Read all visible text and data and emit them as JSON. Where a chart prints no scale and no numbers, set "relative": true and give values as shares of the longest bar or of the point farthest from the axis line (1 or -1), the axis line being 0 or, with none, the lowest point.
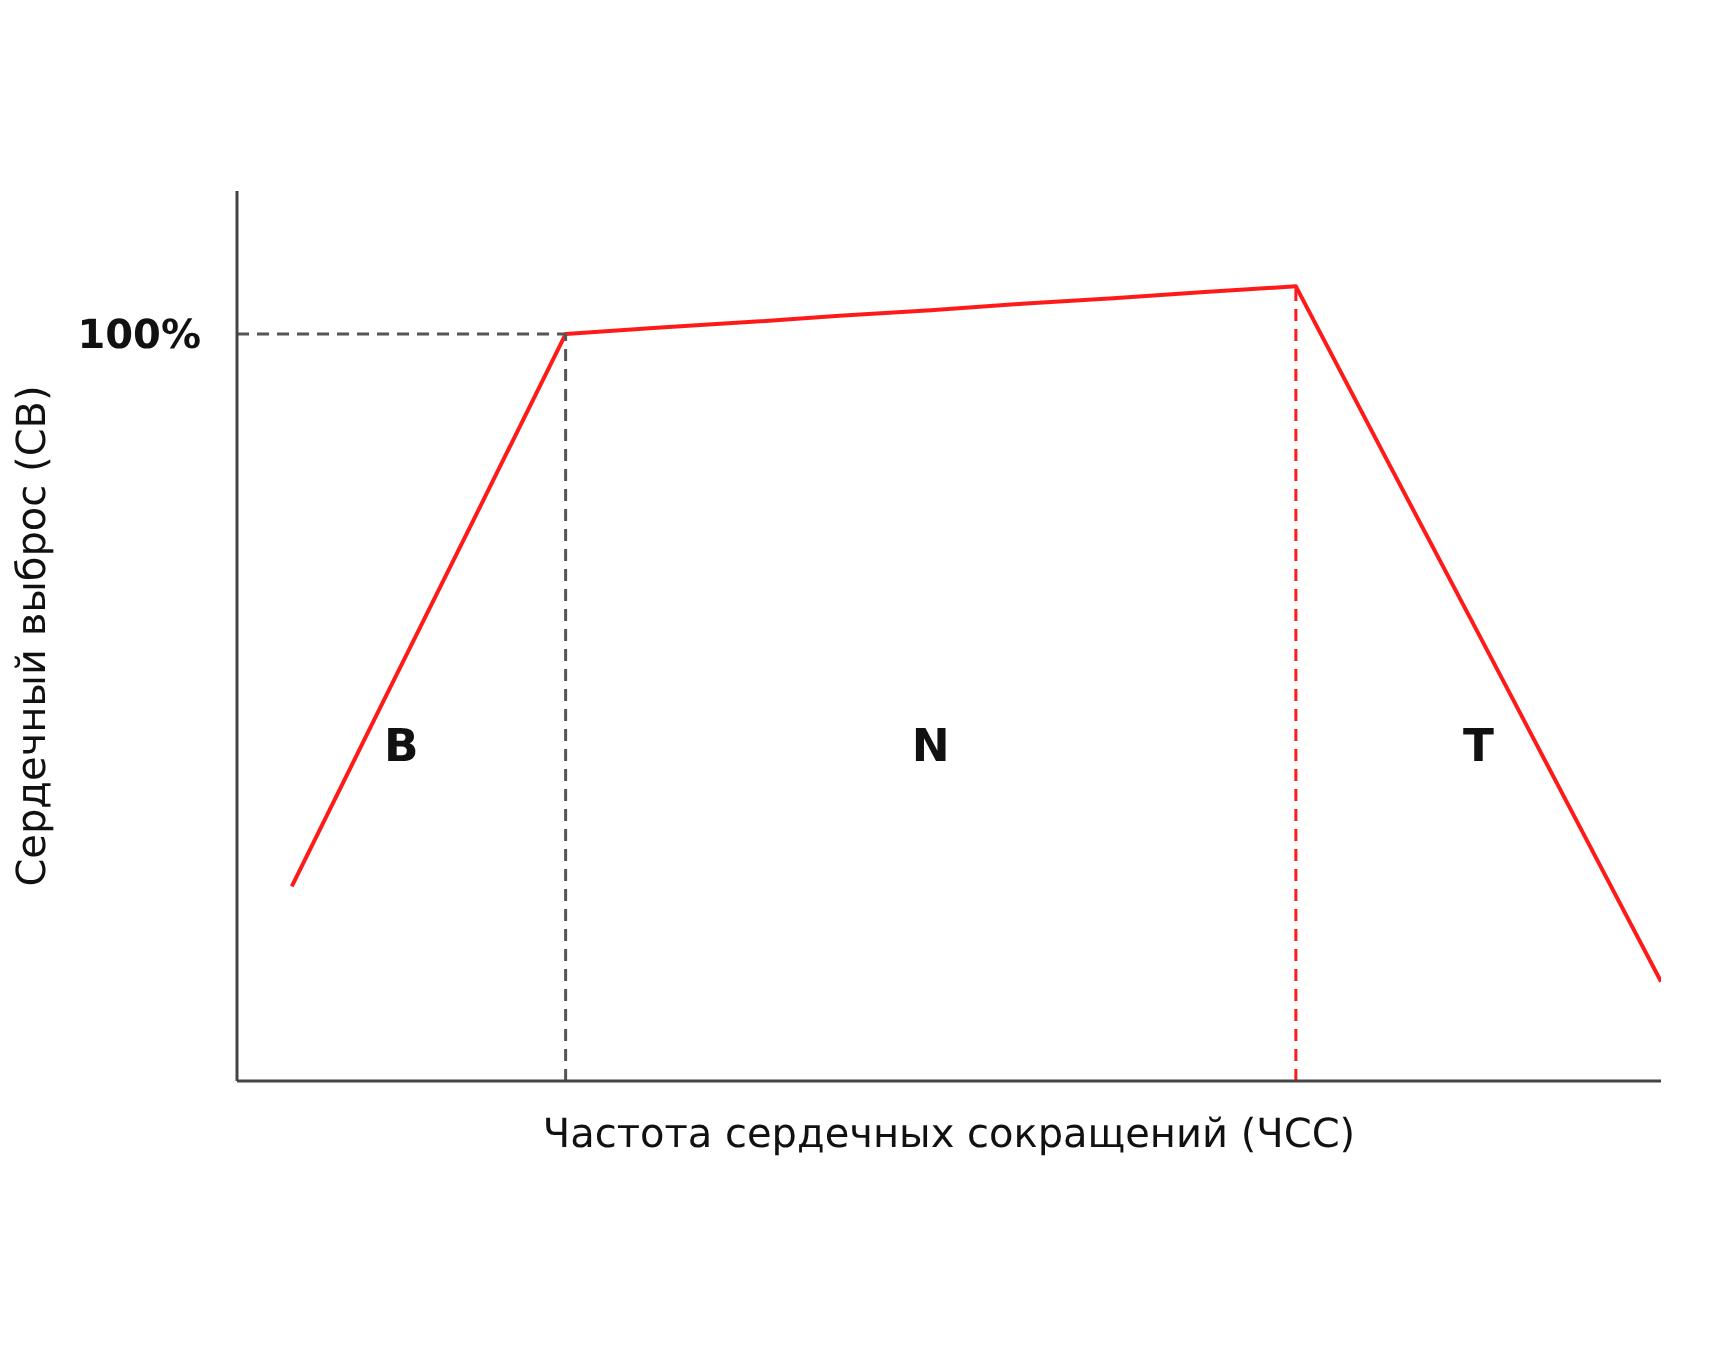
{
  "chart_data": {
    "type": "line",
    "relative": true,
    "xlabel": "Частота сердечных сокращений (ЧСС)",
    "ylabel": "Сердечный выброс (СВ)",
    "categories": [
      null,
      null,
      null,
      null,
      null,
      null,
      null,
      null,
      null,
      null,
      null,
      null,
      null,
      null,
      null,
      null
    ],
    "series": [
      {
        "color": "#ff1a1a",
        "values": [
          0.245,
          0.477,
          0.708,
          0.94,
          0.948,
          0.955,
          0.963,
          0.97,
          0.978,
          0.985,
          0.993,
          1.0,
          0.781,
          0.563,
          0.344,
          0.125
        ]
      }
    ],
    "tick_labels": false,
    "ref_lines": [
      {
        "axis": "y",
        "value": 0.94,
        "color": "#555555",
        "line_style": "dashed"
      }
    ],
    "annotations": [
      "100%",
      "B",
      "N",
      "T"
    ]
  }
}
